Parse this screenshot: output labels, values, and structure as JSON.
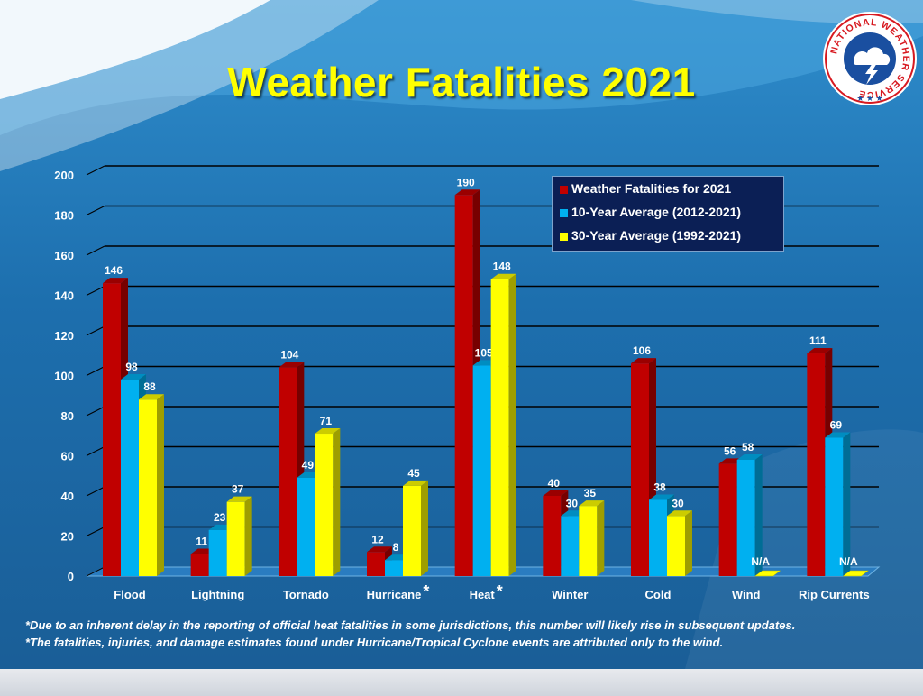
{
  "title": "Weather Fatalities 2021",
  "logo_text": "NATIONAL WEATHER SERVICE",
  "footnotes": [
    "*Due to an inherent delay in the reporting of official heat fatalities in some jurisdictions, this number will likely rise in subsequent updates.",
    "*The fatalities, injuries, and damage estimates found under Hurricane/Tropical Cyclone events are attributed only to the wind."
  ],
  "colors": {
    "series_2021": "#c00000",
    "series_10yr": "#00b0f0",
    "series_30yr": "#ffff00",
    "title": "#ffff00",
    "legend_bg": "#0b1f55"
  },
  "legend": [
    "Weather Fatalities for 2021",
    "10-Year Average (2012-2021)",
    "30-Year Average (1992-2021)"
  ],
  "chart_data": {
    "type": "bar",
    "title": "Weather Fatalities 2021",
    "categories": [
      "Flood",
      "Lightning",
      "Tornado",
      "Hurricane",
      "Heat",
      "Winter",
      "Cold",
      "Wind",
      "Rip Currents"
    ],
    "category_marks": [
      "",
      "",
      "",
      "*",
      "*",
      "",
      "",
      "",
      ""
    ],
    "series": [
      {
        "name": "Weather Fatalities for 2021",
        "values": [
          146,
          11,
          104,
          12,
          190,
          40,
          106,
          56,
          111
        ]
      },
      {
        "name": "10-Year Average (2012-2021)",
        "values": [
          98,
          23,
          49,
          8,
          105,
          30,
          38,
          58,
          69
        ]
      },
      {
        "name": "30-Year Average (1992-2021)",
        "values": [
          88,
          37,
          71,
          45,
          148,
          35,
          30,
          null,
          null
        ]
      }
    ],
    "missing_label": "N/A",
    "ylim": [
      0,
      200
    ],
    "yticks": [
      0,
      20,
      40,
      60,
      80,
      100,
      120,
      140,
      160,
      180,
      200
    ],
    "grid": true,
    "legend_position": "top-right"
  }
}
